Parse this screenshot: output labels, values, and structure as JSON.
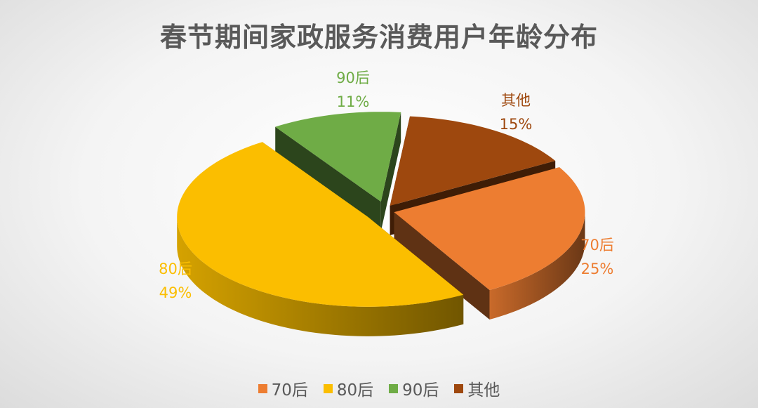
{
  "chart_data": {
    "type": "pie",
    "style": "3d-exploded",
    "title": "春节期间家政服务消费用户年龄分布",
    "slices": [
      {
        "label": "70后",
        "value": 25,
        "display": "25%",
        "color": "#ED7D31"
      },
      {
        "label": "80后",
        "value": 49,
        "display": "49%",
        "color": "#FBBE00"
      },
      {
        "label": "90后",
        "value": 11,
        "display": "11%",
        "color": "#6FAC46"
      },
      {
        "label": "其他",
        "value": 15,
        "display": "15%",
        "color": "#9E480E"
      }
    ],
    "legend_position": "bottom"
  }
}
